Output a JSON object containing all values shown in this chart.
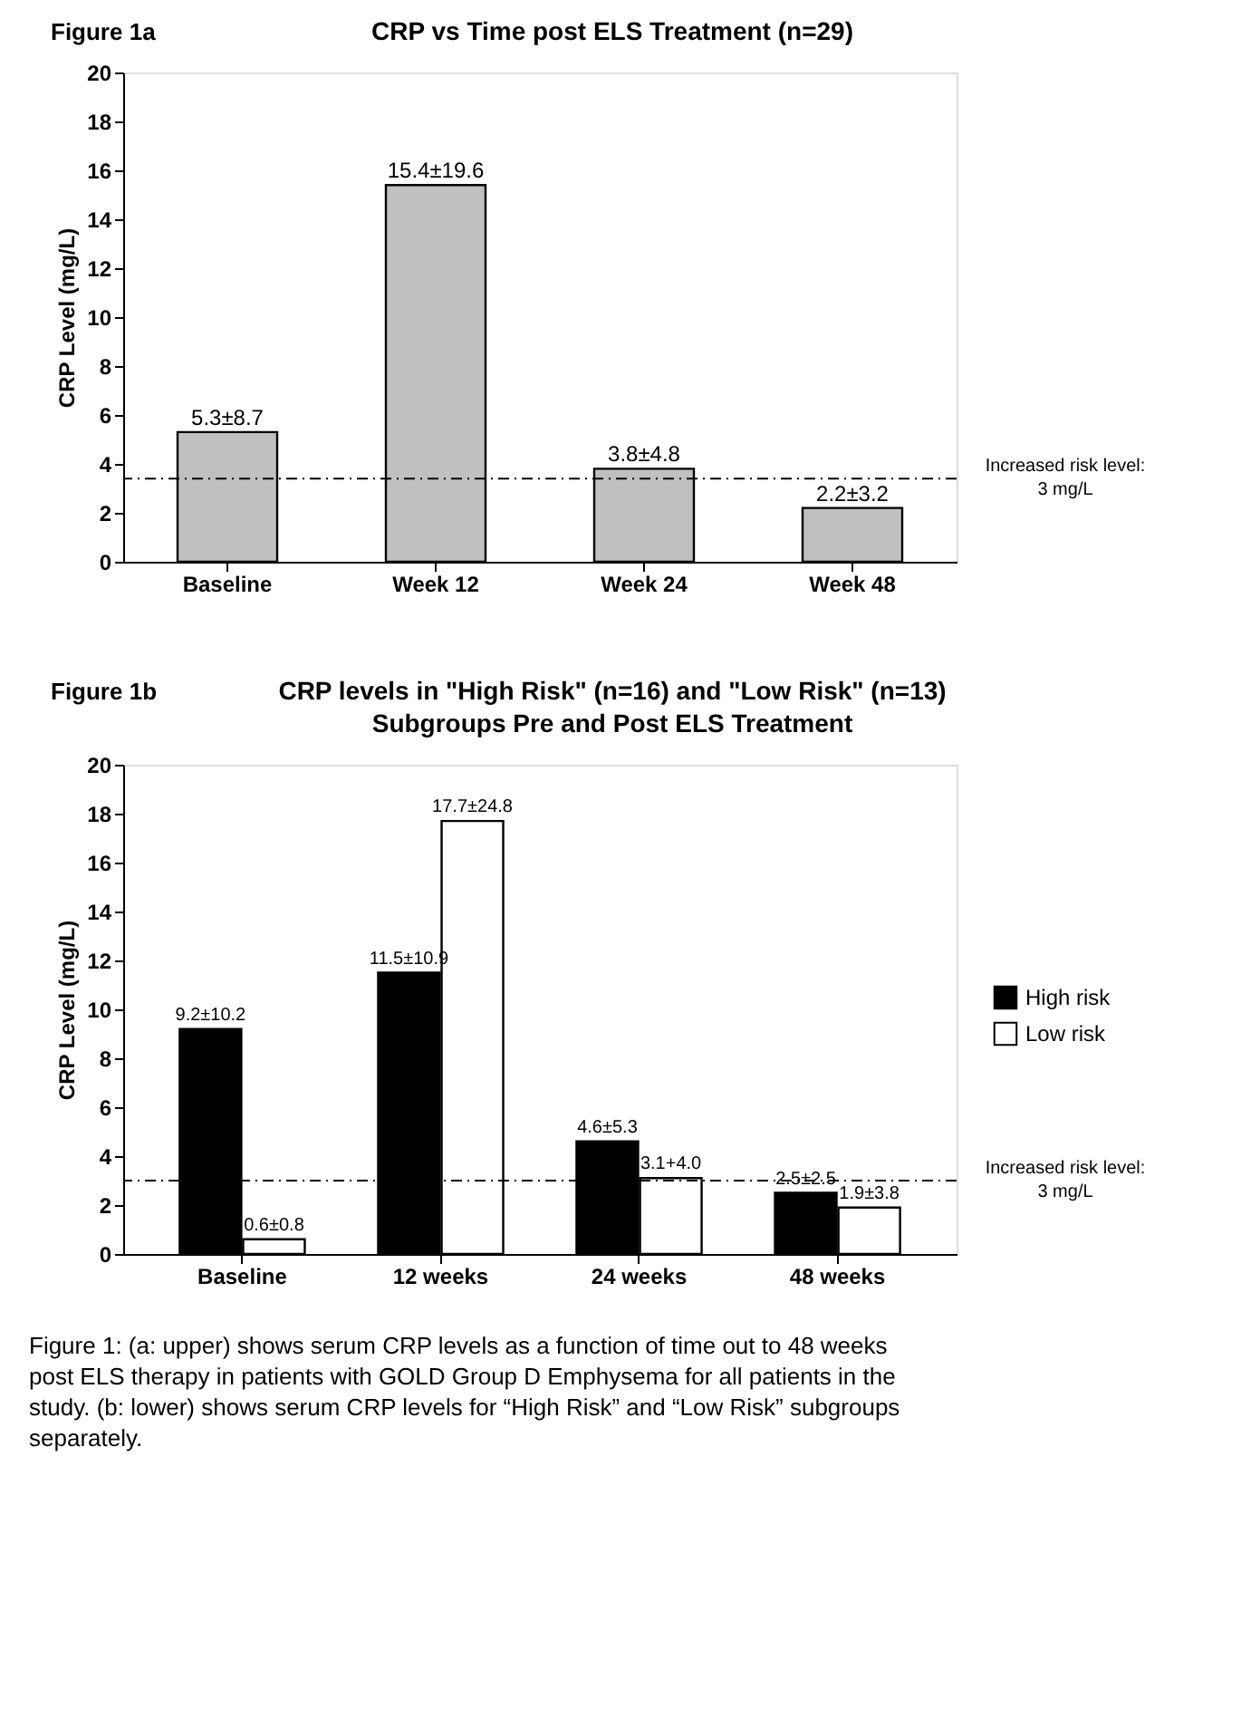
{
  "chart_data": [
    {
      "type": "bar",
      "title": "CRP vs Time post ELS Treatment (n=29)",
      "ylabel": "CRP Level (mg/L)",
      "categories": [
        "Baseline",
        "Week 12",
        "Week 24",
        "Week 48"
      ],
      "series": [
        {
          "color": "#c0c0c0",
          "values": [
            5.3,
            15.4,
            3.8,
            2.2
          ],
          "value_labels": [
            "5.3±8.7",
            "15.4±19.6",
            "3.8±4.8",
            "2.2±3.2"
          ]
        }
      ],
      "ylim": [
        0,
        20
      ],
      "yticks": [
        0,
        2,
        4,
        6,
        8,
        10,
        12,
        14,
        16,
        18,
        20
      ],
      "grid": false,
      "legend": false,
      "ref_lines": [
        {
          "axis": "y",
          "value": 3.4,
          "label": "Increased risk level: 3 mg/L",
          "line_style": "dashdot"
        }
      ],
      "annotations": [
        "Figure 1a"
      ]
    },
    {
      "type": "bar",
      "title": "CRP levels in \"High Risk\" (n=16) and \"Low Risk\" (n=13) Subgroups Pre and Post ELS Treatment",
      "ylabel": "CRP Level (mg/L)",
      "categories": [
        "Baseline",
        "12 weeks",
        "24 weeks",
        "48 weeks"
      ],
      "series": [
        {
          "name": "High risk",
          "color": "#000000",
          "values": [
            9.2,
            11.5,
            4.6,
            2.5
          ],
          "value_labels": [
            "9.2±10.2",
            "11.5±10.9",
            "4.6±5.3",
            "2.5±2.5"
          ]
        },
        {
          "name": "Low risk",
          "color": "#ffffff",
          "values": [
            0.6,
            17.7,
            3.1,
            1.9
          ],
          "value_labels": [
            "0.6±0.8",
            "17.7±24.8",
            "3.1+4.0",
            "1.9±3.8"
          ]
        }
      ],
      "ylim": [
        0,
        20
      ],
      "yticks": [
        0,
        2,
        4,
        6,
        8,
        10,
        12,
        14,
        16,
        18,
        20
      ],
      "grid": false,
      "legend": "right",
      "ref_lines": [
        {
          "axis": "y",
          "value": 3.0,
          "label": "Increased risk level: 3 mg/L",
          "line_style": "dashdot"
        }
      ],
      "annotations": [
        "Figure 1b",
        "Figure 1: (a: upper) shows serum CRP levels as a function of time out to 48 weeks post ELS therapy in patients with GOLD Group D Emphysema for all patients in the study. (b: lower) shows serum CRP levels for “High Risk” and “Low Risk” subgroups separately."
      ]
    }
  ]
}
